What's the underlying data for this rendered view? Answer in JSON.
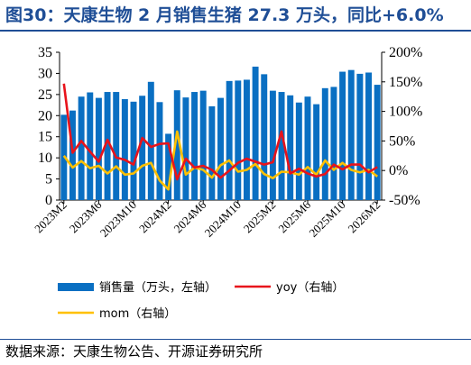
{
  "title": "图30：天康生物 2 月销售生猪 27.3 万头，同比+6.0%",
  "source": "数据来源：天康生物公告、开源证券研究所",
  "colors": {
    "bars": "#0a6fc2",
    "yoy": "#e8131b",
    "mom": "#ffc000",
    "title": "#1f4e96"
  },
  "chart_data": {
    "type": "bar",
    "categories": [
      "2023M2",
      "2023M3",
      "2023M4",
      "2023M5",
      "2023M6",
      "2023M7",
      "2023M8",
      "2023M9",
      "2023M10",
      "2023M11",
      "2023M12",
      "2024M1",
      "2024M2",
      "2024M3",
      "2024M4",
      "2024M5",
      "2024M6",
      "2024M7",
      "2024M8",
      "2024M9",
      "2024M10",
      "2024M11",
      "2024M12",
      "2025M1",
      "2025M2",
      "2025M3",
      "2025M4",
      "2025M5",
      "2025M6",
      "2025M7",
      "2025M8",
      "2025M9",
      "2025M10",
      "2025M11",
      "2025M12",
      "2026M1",
      "2026M2"
    ],
    "x_tick_labels": [
      "2023M2",
      "2023M6",
      "2023M10",
      "2024M2",
      "2024M6",
      "2024M10",
      "2025M2",
      "2025M6",
      "2025M10",
      "2026M2"
    ],
    "series": [
      {
        "name": "销售量（万头，左轴）",
        "type": "bar",
        "axis": "left",
        "values": [
          20.2,
          21.2,
          24.5,
          25.5,
          24.2,
          25.6,
          25.6,
          23.9,
          23.3,
          24.7,
          28.0,
          23.2,
          15.7,
          26.0,
          24.3,
          25.6,
          25.9,
          22.2,
          24.2,
          28.2,
          28.3,
          28.5,
          31.6,
          29.8,
          25.9,
          25.6,
          24.8,
          23.1,
          24.5,
          22.7,
          26.5,
          26.8,
          30.4,
          30.8,
          29.9,
          30.2,
          27.3
        ]
      },
      {
        "name": "yoy（右轴）",
        "type": "line",
        "axis": "right",
        "values": [
          147,
          30,
          50,
          32,
          15,
          52,
          22,
          18,
          10,
          55,
          40,
          45,
          46,
          -15,
          20,
          5,
          8,
          1,
          -12,
          0,
          13,
          20,
          15,
          10,
          14,
          66,
          -5,
          3,
          -5,
          -10,
          -6,
          10,
          2,
          10,
          10,
          -3,
          6
        ]
      },
      {
        "name": "mom（右轴）",
        "type": "line",
        "axis": "right",
        "values": [
          25,
          5,
          16,
          4,
          8,
          -5,
          7,
          -7,
          -5,
          8,
          13,
          -17,
          -32,
          66,
          -7,
          5,
          1,
          -12,
          9,
          17,
          -2,
          1,
          11,
          -6,
          -13,
          -2,
          -3,
          -7,
          6,
          -7,
          17,
          1,
          13,
          1,
          -3,
          1,
          -10
        ]
      }
    ],
    "y_left": {
      "ticks": [
        "0",
        "5",
        "10",
        "15",
        "20",
        "25",
        "30",
        "35"
      ],
      "min": 0,
      "max": 35
    },
    "y_right": {
      "ticks": [
        "-50%",
        "0%",
        "50%",
        "100%",
        "150%",
        "200%"
      ],
      "min": -50,
      "max": 200
    },
    "legend": [
      "销售量（万头，左轴）",
      "yoy（右轴）",
      "mom（右轴）"
    ],
    "legend_position": "bottom",
    "grid": false
  }
}
